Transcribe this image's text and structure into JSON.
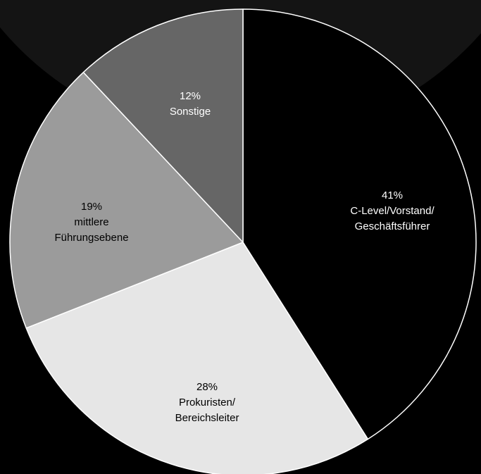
{
  "chart_data": {
    "type": "pie",
    "start": "top",
    "direction": "clockwise",
    "slices": [
      {
        "value": 41,
        "label_lines": [
          "41%",
          "C-Level/Vorstand/",
          "Geschäftsführer"
        ],
        "color": "#000000",
        "text_color": "#ffffff"
      },
      {
        "value": 28,
        "label_lines": [
          "28%",
          "Prokuristen/",
          "Bereichsleiter"
        ],
        "color": "#e6e6e6",
        "text_color": "#000000"
      },
      {
        "value": 19,
        "label_lines": [
          "19%",
          "mittlere",
          "Führungsebene"
        ],
        "color": "#9b9b9b",
        "text_color": "#000000"
      },
      {
        "value": 12,
        "label_lines": [
          "12%",
          "Sonstige"
        ],
        "color": "#666666",
        "text_color": "#ffffff"
      }
    ]
  },
  "colors": {
    "background": "#000000",
    "backdrop_arc": "#141414",
    "slice_border": "#ffffff"
  }
}
